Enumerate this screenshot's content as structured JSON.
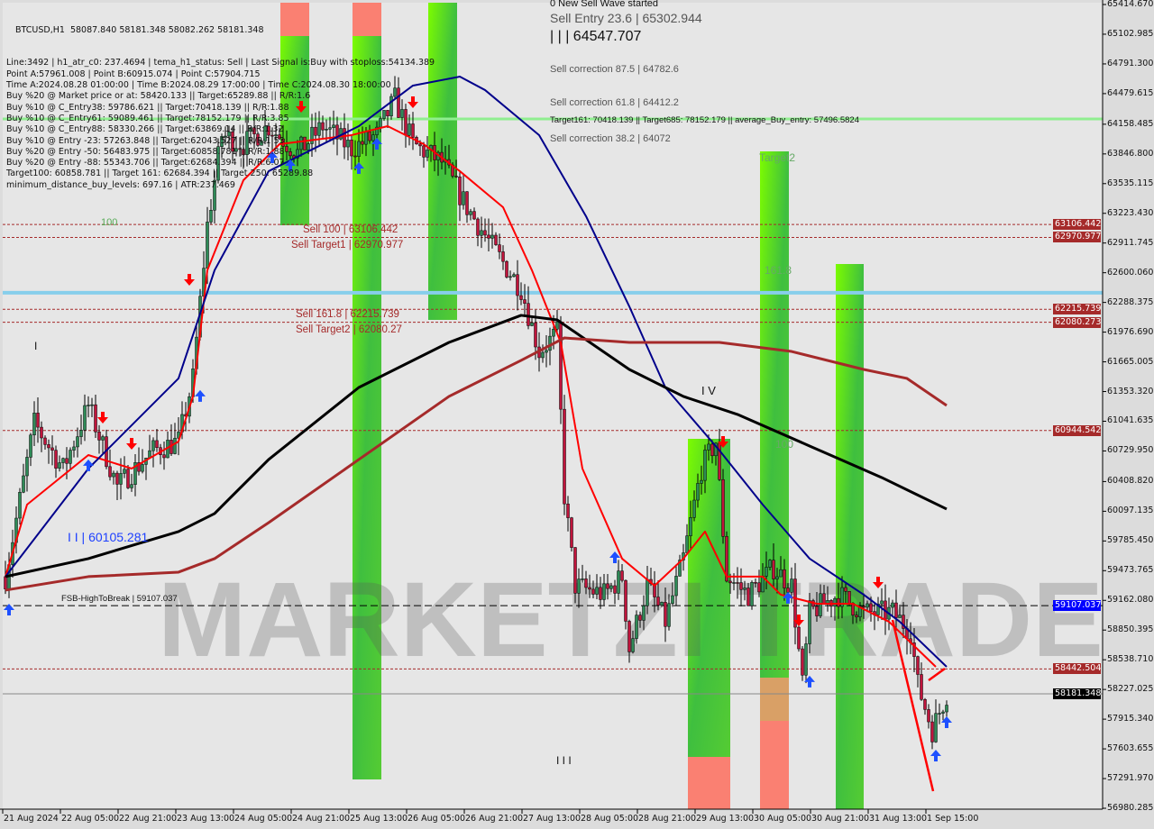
{
  "header": {
    "symbol_line": "BTCUSD,H1  58087.840 58181.348 58082.262 58181.348",
    "new_wave": "0 New Sell Wave started"
  },
  "info_lines": [
    "Line:3492 | h1_atr_c0: 237.4694 | tema_h1_status: Sell | Last Signal is:Buy with stoploss:54134.389",
    "Point A:57961.008 | Point B:60915.074 | Point C:57904.715",
    "Time A:2024.08.28 01:00:00 | Time B:2024.08.29 17:00:00 | Time C:2024.08.30 18:00:00",
    "Buy %20 @ Market price or at: 58420.133 || Target:65289.88 || R/R:1.6",
    "Buy %10 @ C_Entry38: 59786.621 || Target:70418.139 || R/R:1.88",
    "Buy %10 @ C_Entry61: 59089.461 || Target:78152.179 || R/R:3.85",
    "Buy %10 @ C_Entry88: 58330.266 || Target:63869.14 || R/R:1.32",
    "Buy %10 @ Entry -23: 57263.848 || Target:62043.527 || R/R:1.53",
    "Buy %20 @ Entry -50: 56483.975 || Target:60858.781 || R/R:1.88",
    "Buy %20 @ Entry -88: 55343.706 || Target:62684.394 || R/R:6.07",
    "Target100: 60858.781 || Target 161: 62684.394 || Target 250: 65289.88",
    "minimum_distance_buy_levels: 697.16 | ATR:237.469"
  ],
  "chart_labels": {
    "sell_entry": "Sell Entry 23.6 | 65302.944",
    "wave_high": "| | | 64547.707",
    "sell_corr_875": "Sell correction 87.5 | 64782.6",
    "sell_corr_618": "Sell correction 61.8 | 64412.2",
    "sell_corr_382": "Sell correction 38.2 | 64072",
    "targets_line": "Target161: 70418.139 || Target685: 78152.179 || average_Buy_entry: 57496.5824",
    "sell_100": "Sell 100 | 63106.442",
    "sell_target1": "Sell Target1 | 62970.977",
    "sell_1618": "Sell 161.8 | 62215.739",
    "sell_target2": "Sell Target2 | 62080.27",
    "level_100_left": "100",
    "wave_i": "I",
    "wave_ii": "I I | 60105.281",
    "fsb": "FSB-HighToBreak | 59107.037",
    "wave_iv": "I V",
    "wave_iii": "I I I",
    "zone_target2": "Target2",
    "zone_1618": "161.8",
    "zone_100": "100",
    "watermark": "MARKETZI TRADE"
  },
  "colors": {
    "bull_candle": "#2e8b57",
    "bear_candle": "#c0143c",
    "fast_ma": "#ff0000",
    "blue_ma": "#00008b",
    "black_ma": "#000000",
    "darkred_ma": "#a52a2a",
    "zone_green": "#3fbf3f",
    "zone_lime": "#7cfc00",
    "zone_salmon": "#fa8072",
    "sell_level": "#a52a2a",
    "fsb_level": "#0000ff",
    "bid": "#000000"
  },
  "chart_data": {
    "type": "candlestick",
    "symbol": "BTCUSD",
    "timeframe": "H1",
    "ylim": [
      56980.285,
      65414.67
    ],
    "y_ticks": [
      "65414.670",
      "65102.985",
      "64791.300",
      "64479.615",
      "64158.485",
      "63846.800",
      "63535.115",
      "63223.430",
      "62911.745",
      "62600.060",
      "62288.375",
      "61976.690",
      "61665.005",
      "61353.320",
      "61041.635",
      "60729.950",
      "60408.820",
      "60097.135",
      "59785.450",
      "59473.765",
      "59162.080",
      "58850.395",
      "58538.710",
      "58227.025",
      "57915.340",
      "57603.655",
      "57291.970",
      "56980.285"
    ],
    "x_ticks": [
      "21 Aug 2024",
      "22 Aug 05:00",
      "22 Aug 21:00",
      "23 Aug 13:00",
      "24 Aug 05:00",
      "24 Aug 21:00",
      "25 Aug 13:00",
      "26 Aug 05:00",
      "26 Aug 21:00",
      "27 Aug 13:00",
      "28 Aug 05:00",
      "28 Aug 21:00",
      "29 Aug 13:00",
      "30 Aug 05:00",
      "30 Aug 21:00",
      "31 Aug 13:00",
      "1 Sep 15:00"
    ],
    "price_tags": [
      {
        "value": "63106.442",
        "kind": "sell"
      },
      {
        "value": "62970.977",
        "kind": "sell"
      },
      {
        "value": "62215.739",
        "kind": "sell"
      },
      {
        "value": "62080.273",
        "kind": "sell"
      },
      {
        "value": "60944.542",
        "kind": "sell"
      },
      {
        "value": "59107.037",
        "kind": "fsb"
      },
      {
        "value": "58442.504",
        "kind": "sell"
      },
      {
        "value": "58181.348",
        "kind": "bid"
      }
    ],
    "close_path": [
      [
        "08-21 14:00",
        59411
      ],
      [
        "08-21 22:00",
        61018
      ],
      [
        "08-22 06:00",
        60545
      ],
      [
        "08-22 13:00",
        61207
      ],
      [
        "08-22 21:00",
        60356
      ],
      [
        "08-23 07:00",
        60735
      ],
      [
        "08-23 14:00",
        60829
      ],
      [
        "08-23 18:00",
        61491
      ],
      [
        "08-23 22:00",
        63098
      ],
      [
        "08-24 02:00",
        64044
      ],
      [
        "08-24 08:00",
        63949
      ],
      [
        "08-24 15:00",
        64138
      ],
      [
        "08-24 23:00",
        63855
      ],
      [
        "08-25 06:00",
        64138
      ],
      [
        "08-25 14:00",
        63902
      ],
      [
        "08-25 21:00",
        64044
      ],
      [
        "08-26 02:00",
        64422
      ],
      [
        "08-26 07:00",
        63949
      ],
      [
        "08-26 15:00",
        63760
      ],
      [
        "08-26 22:00",
        63287
      ],
      [
        "08-27 06:00",
        62815
      ],
      [
        "08-27 13:00",
        62436
      ],
      [
        "08-27 18:00",
        61774
      ],
      [
        "08-27 23:00",
        61963
      ],
      [
        "08-28 01:00",
        60262
      ],
      [
        "08-28 04:00",
        59316
      ],
      [
        "08-28 12:00",
        59222
      ],
      [
        "08-28 17:00",
        59411
      ],
      [
        "08-28 19:00",
        58654
      ],
      [
        "08-29 00:00",
        59316
      ],
      [
        "08-29 05:00",
        58938
      ],
      [
        "08-29 10:00",
        59600
      ],
      [
        "08-29 15:00",
        60545
      ],
      [
        "08-29 19:00",
        60829
      ],
      [
        "08-29 22:00",
        59411
      ],
      [
        "08-30 04:00",
        59222
      ],
      [
        "08-30 11:00",
        59506
      ],
      [
        "08-30 16:00",
        59316
      ],
      [
        "08-30 19:00",
        58276
      ],
      [
        "08-30 21:00",
        59033
      ],
      [
        "08-31 05:00",
        59222
      ],
      [
        "08-31 12:00",
        59033
      ],
      [
        "08-31 20:00",
        59033
      ],
      [
        "09-01 01:00",
        58844
      ],
      [
        "09-01 03:00",
        58276
      ],
      [
        "09-01 07:00",
        57803
      ],
      [
        "09-01 11:00",
        58181
      ]
    ],
    "series": [
      {
        "key": "fast_ma",
        "points": [
          [
            "08-21 14:00",
            59411
          ],
          [
            "08-21 20:00",
            60167
          ],
          [
            "08-22 13:00",
            60687
          ],
          [
            "08-23 01:00",
            60545
          ],
          [
            "08-23 14:00",
            60829
          ],
          [
            "08-23 18:00",
            61302
          ],
          [
            "08-23 22:00",
            62626
          ],
          [
            "08-24 08:00",
            63571
          ],
          [
            "08-24 18:00",
            63949
          ],
          [
            "08-25 14:00",
            64044
          ],
          [
            "08-26 00:00",
            64138
          ],
          [
            "08-26 10:00",
            63949
          ],
          [
            "08-26 20:00",
            63666
          ],
          [
            "08-27 08:00",
            63287
          ],
          [
            "08-27 16:00",
            62626
          ],
          [
            "08-28 00:00",
            61869
          ],
          [
            "08-28 06:00",
            60545
          ],
          [
            "08-28 17:00",
            59600
          ],
          [
            "08-29 02:00",
            59316
          ],
          [
            "08-29 10:00",
            59600
          ],
          [
            "08-29 16:00",
            59884
          ],
          [
            "08-29 22:00",
            59411
          ],
          [
            "08-30 08:00",
            59411
          ],
          [
            "08-30 13:00",
            59222
          ],
          [
            "08-30 23:00",
            59127
          ],
          [
            "08-31 09:00",
            59127
          ],
          [
            "08-31 19:00",
            58938
          ],
          [
            "09-01 08:00",
            58465
          ]
        ]
      },
      {
        "key": "blue_ma",
        "points": [
          [
            "08-21 14:00",
            59411
          ],
          [
            "08-22 13:00",
            60545
          ],
          [
            "08-23 14:00",
            61491
          ],
          [
            "08-24 00:00",
            62626
          ],
          [
            "08-24 15:00",
            63666
          ],
          [
            "08-25 16:00",
            64138
          ],
          [
            "08-26 07:00",
            64564
          ],
          [
            "08-26 20:00",
            64658
          ],
          [
            "08-27 03:00",
            64517
          ],
          [
            "08-27 18:00",
            64044
          ],
          [
            "08-28 07:00",
            63193
          ],
          [
            "08-28 19:00",
            62247
          ],
          [
            "08-29 05:00",
            61396
          ],
          [
            "08-29 20:00",
            60735
          ],
          [
            "08-30 08:00",
            60167
          ],
          [
            "08-30 21:00",
            59600
          ],
          [
            "08-31 12:00",
            59222
          ],
          [
            "08-31 22:00",
            58938
          ],
          [
            "09-01 11:00",
            58465
          ]
        ]
      },
      {
        "key": "black_ma",
        "points": [
          [
            "08-21 14:00",
            59411
          ],
          [
            "08-22 13:00",
            59600
          ],
          [
            "08-23 14:00",
            59884
          ],
          [
            "08-24 00:00",
            60073
          ],
          [
            "08-24 15:00",
            60640
          ],
          [
            "08-25 16:00",
            61396
          ],
          [
            "08-26 17:00",
            61869
          ],
          [
            "08-27 13:00",
            62153
          ],
          [
            "08-27 23:00",
            62105
          ],
          [
            "08-28 19:00",
            61585
          ],
          [
            "08-29 10:00",
            61302
          ],
          [
            "08-30 01:00",
            61113
          ],
          [
            "08-30 21:00",
            60782
          ],
          [
            "08-31 17:00",
            60451
          ],
          [
            "09-01 11:00",
            60120
          ]
        ]
      },
      {
        "key": "darkred_ma",
        "points": [
          [
            "08-21 14:00",
            59269
          ],
          [
            "08-22 13:00",
            59411
          ],
          [
            "08-23 14:00",
            59458
          ],
          [
            "08-24 00:00",
            59600
          ],
          [
            "08-24 15:00",
            59978
          ],
          [
            "08-25 16:00",
            60640
          ],
          [
            "08-26 17:00",
            61302
          ],
          [
            "08-27 13:00",
            61680
          ],
          [
            "08-28 01:00",
            61916
          ],
          [
            "08-28 19:00",
            61869
          ],
          [
            "08-29 20:00",
            61869
          ],
          [
            "08-30 16:00",
            61774
          ],
          [
            "08-31 12:00",
            61585
          ],
          [
            "09-01 00:00",
            61491
          ],
          [
            "09-01 11:00",
            61207
          ]
        ]
      }
    ],
    "arrows": [
      {
        "dir": "down",
        "time": "08-23 17:00",
        "price": 62512
      },
      {
        "dir": "down",
        "time": "08-22 17:00",
        "price": 61065
      },
      {
        "dir": "down",
        "time": "08-23 01:00",
        "price": 60791
      },
      {
        "dir": "down",
        "time": "08-25 00:00",
        "price": 64327
      },
      {
        "dir": "down",
        "time": "08-26 07:00",
        "price": 64375
      },
      {
        "dir": "down",
        "time": "08-29 21:00",
        "price": 60810
      },
      {
        "dir": "down",
        "time": "08-30 18:00",
        "price": 58938
      },
      {
        "dir": "down",
        "time": "08-31 16:00",
        "price": 59335
      },
      {
        "dir": "up",
        "time": "08-21 15:00",
        "price": 59080
      },
      {
        "dir": "up",
        "time": "08-22 13:00",
        "price": 60593
      },
      {
        "dir": "up",
        "time": "08-23 20:00",
        "price": 61321
      },
      {
        "dir": "up",
        "time": "08-24 16:00",
        "price": 63826
      },
      {
        "dir": "up",
        "time": "08-24 21:00",
        "price": 63741
      },
      {
        "dir": "up",
        "time": "08-25 16:00",
        "price": 63713
      },
      {
        "dir": "up",
        "time": "08-25 21:00",
        "price": 63968
      },
      {
        "dir": "up",
        "time": "08-28 15:00",
        "price": 59628
      },
      {
        "dir": "up",
        "time": "08-30 15:00",
        "price": 59203
      },
      {
        "dir": "up",
        "time": "08-30 21:00",
        "price": 58324
      },
      {
        "dir": "up",
        "time": "09-01 08:00",
        "price": 57548
      },
      {
        "dir": "up",
        "time": "09-01 11:00",
        "price": 57898
      }
    ],
    "horizontal_levels": [
      {
        "price": 64214,
        "style": "green-solid"
      },
      {
        "price": 62390,
        "style": "lightblue-solid"
      },
      {
        "price": 63106.442,
        "style": "sell-dashed"
      },
      {
        "price": 62970.977,
        "style": "sell-dashed"
      },
      {
        "price": 62215.739,
        "style": "sell-dashed"
      },
      {
        "price": 62080.273,
        "style": "sell-dashed"
      },
      {
        "price": 60944.542,
        "style": "sell-dashed"
      },
      {
        "price": 58442.504,
        "style": "sell-dashed"
      },
      {
        "price": 59107.037,
        "style": "fsb-dashed"
      },
      {
        "price": 58181.348,
        "style": "bid-solid"
      }
    ]
  }
}
